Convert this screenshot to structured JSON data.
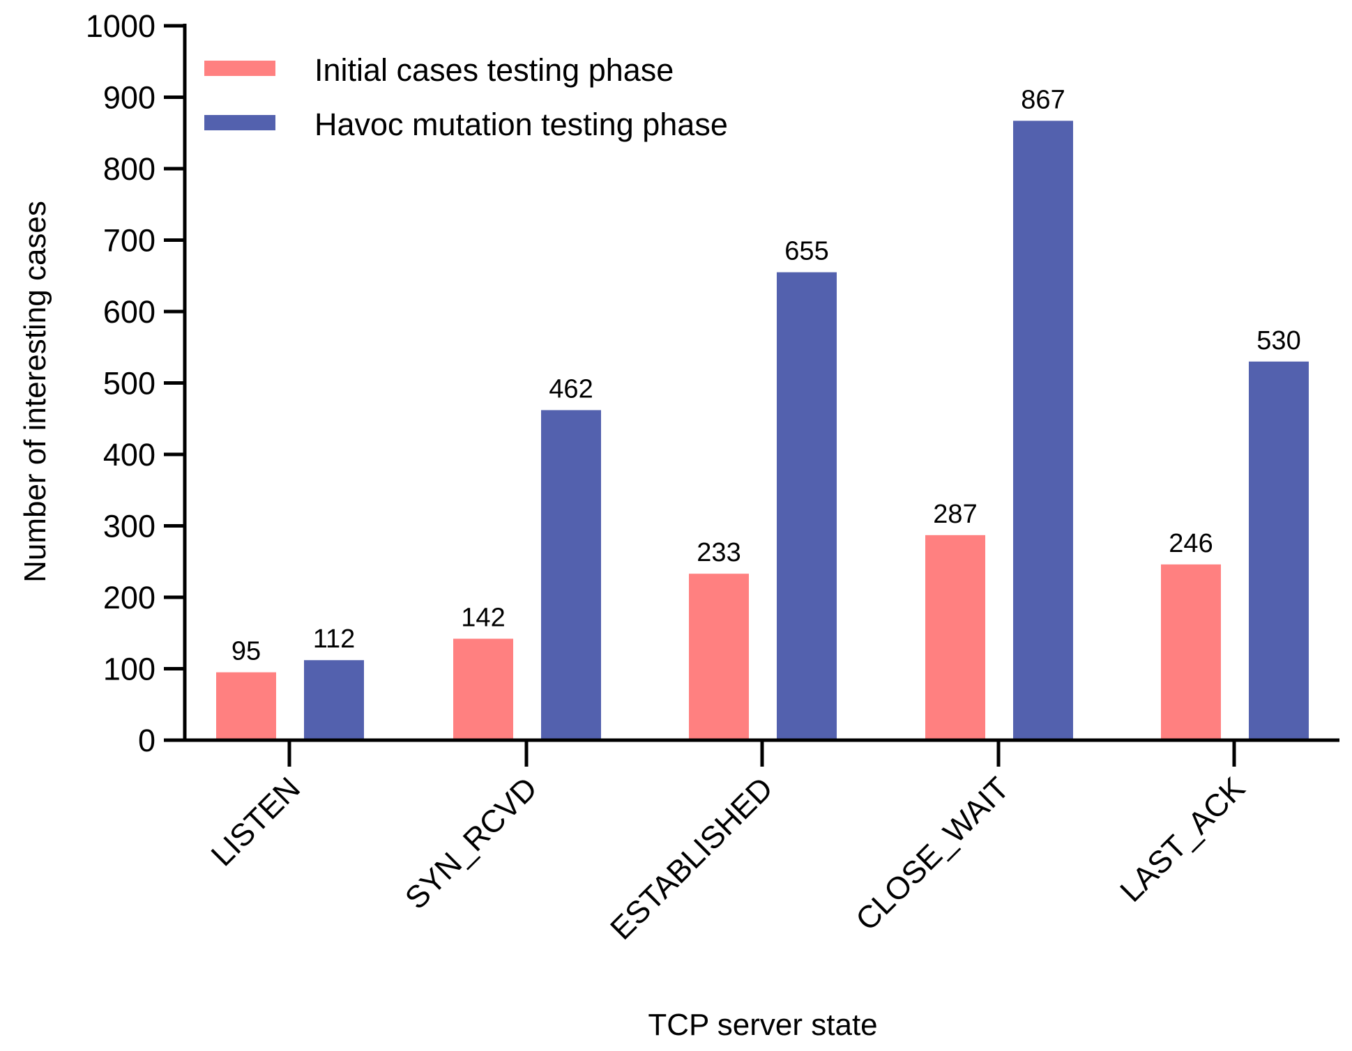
{
  "chart_data": {
    "type": "bar",
    "title": "",
    "xlabel": "TCP server  state",
    "ylabel": "Number of interesting cases",
    "categories": [
      "LISTEN",
      "SYN_RCVD",
      "ESTABLISHED",
      "CLOSE_WAIT",
      "LAST_ACK"
    ],
    "series": [
      {
        "name": "Initial cases testing phase",
        "color": "#FF8080",
        "values": [
          95,
          142,
          233,
          287,
          246
        ]
      },
      {
        "name": "Havoc mutation testing phase",
        "color": "#5361AE",
        "values": [
          112,
          462,
          655,
          867,
          530
        ]
      }
    ],
    "ylim": [
      0,
      1000
    ],
    "yticks": [
      0,
      100,
      200,
      300,
      400,
      500,
      600,
      700,
      800,
      900,
      1000
    ],
    "grid": false,
    "legend": "top-left",
    "data_labels": true
  }
}
